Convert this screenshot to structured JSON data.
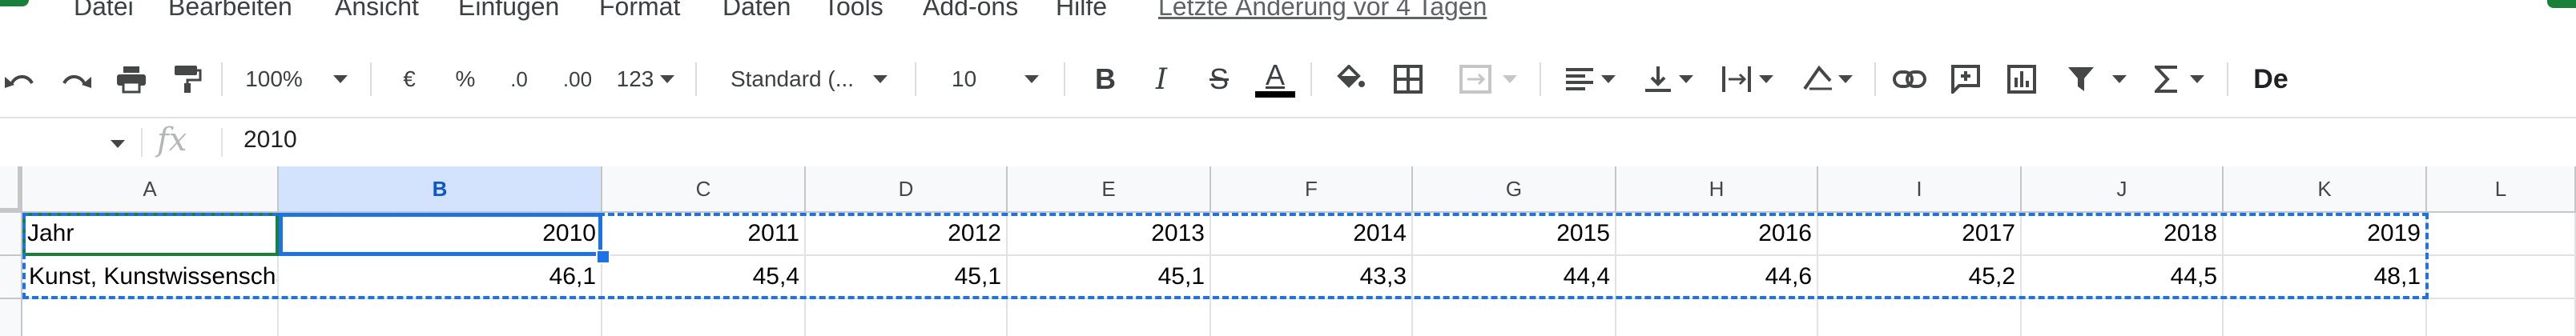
{
  "menu": {
    "items": [
      "Datei",
      "Bearbeiten",
      "Ansicht",
      "Einfügen",
      "Format",
      "Daten",
      "Tools",
      "Add-ons",
      "Hilfe"
    ],
    "last_edit": "Letzte Änderung vor 4 Tagen"
  },
  "toolbar": {
    "zoom": "100%",
    "currency": "€",
    "percent": "%",
    "decimal_decrease": ".0",
    "decimal_increase": ".00",
    "more_formats": "123",
    "font_family": "Standard (...",
    "font_size": "10",
    "bold": "B",
    "italic": "I",
    "strikethrough": "S",
    "text_color": "A",
    "language_input": "De"
  },
  "formula_bar": {
    "fx_label": "fx",
    "value": "2010"
  },
  "grid": {
    "columns": [
      "A",
      "B",
      "C",
      "D",
      "E",
      "F",
      "G",
      "H",
      "I",
      "J",
      "K",
      "L"
    ],
    "rows": [
      [
        "Jahr",
        "2010",
        "2011",
        "2012",
        "2013",
        "2014",
        "2015",
        "2016",
        "2017",
        "2018",
        "2019",
        ""
      ],
      [
        "Kunst, Kunstwissenschaft",
        "46,1",
        "45,4",
        "45,1",
        "45,1",
        "43,3",
        "44,4",
        "44,6",
        "45,2",
        "44,5",
        "48,1",
        ""
      ],
      [
        "",
        "",
        "",
        "",
        "",
        "",
        "",
        "",
        "",
        "",
        "",
        ""
      ]
    ]
  },
  "colors": {
    "accent": "#1a73e8",
    "brand_green": "#188038"
  }
}
